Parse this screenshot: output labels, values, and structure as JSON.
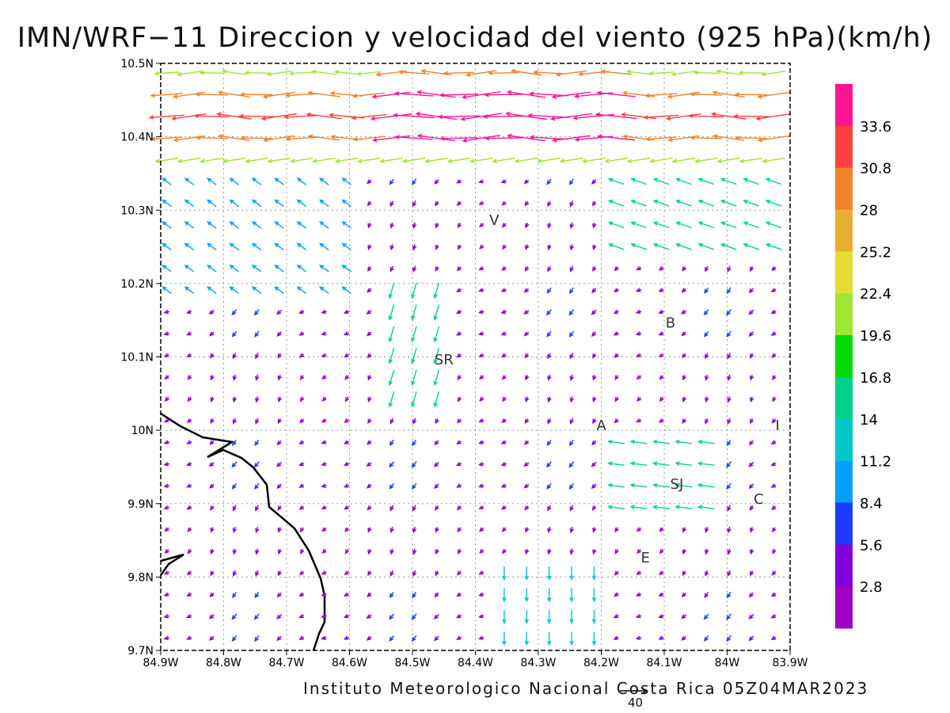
{
  "title": "IMN/WRF−11 Direccion y velocidad del viento (925 hPa)(km/h)",
  "credit": "Instituto Meteorologico Nacional Costa Rica 05Z04MAR2023",
  "reference_vector_label": "40",
  "x_ticks": [
    "84.9W",
    "84.8W",
    "84.7W",
    "84.6W",
    "84.5W",
    "84.4W",
    "84.3W",
    "84.2W",
    "84.1W",
    "84W",
    "83.9W"
  ],
  "y_ticks": [
    "10.5N",
    "10.4N",
    "10.3N",
    "10.2N",
    "10.1N",
    "10N",
    "9.9N",
    "9.8N",
    "9.7N"
  ],
  "towns": [
    {
      "code": "V",
      "lon": -84.37,
      "lat": 10.28
    },
    {
      "code": "SR",
      "lon": -84.45,
      "lat": 10.09
    },
    {
      "code": "B",
      "lon": -84.09,
      "lat": 10.14
    },
    {
      "code": "A",
      "lon": -84.2,
      "lat": 10.0
    },
    {
      "code": "I",
      "lon": -83.92,
      "lat": 10.0
    },
    {
      "code": "SJ",
      "lon": -84.08,
      "lat": 9.92
    },
    {
      "code": "C",
      "lon": -83.95,
      "lat": 9.9
    },
    {
      "code": "E",
      "lon": -84.13,
      "lat": 9.82
    }
  ],
  "colorbar": {
    "labels": [
      "33.6",
      "30.8",
      "28",
      "25.2",
      "22.4",
      "19.6",
      "16.8",
      "14",
      "11.2",
      "8.4",
      "5.6",
      "2.8"
    ],
    "colors": [
      "#ff1493",
      "#ff4040",
      "#f08228",
      "#e6af2d",
      "#e6dc32",
      "#a0e632",
      "#00dc00",
      "#00d28c",
      "#00c8c8",
      "#00a0ff",
      "#1e3cff",
      "#8200dc",
      "#a000c8"
    ]
  },
  "chart_data": {
    "type": "vector_field",
    "xlim": [
      -84.9,
      -83.9
    ],
    "ylim": [
      9.7,
      10.5
    ],
    "units": "km/h",
    "level": "925 hPa",
    "reference_speed": 40
  }
}
